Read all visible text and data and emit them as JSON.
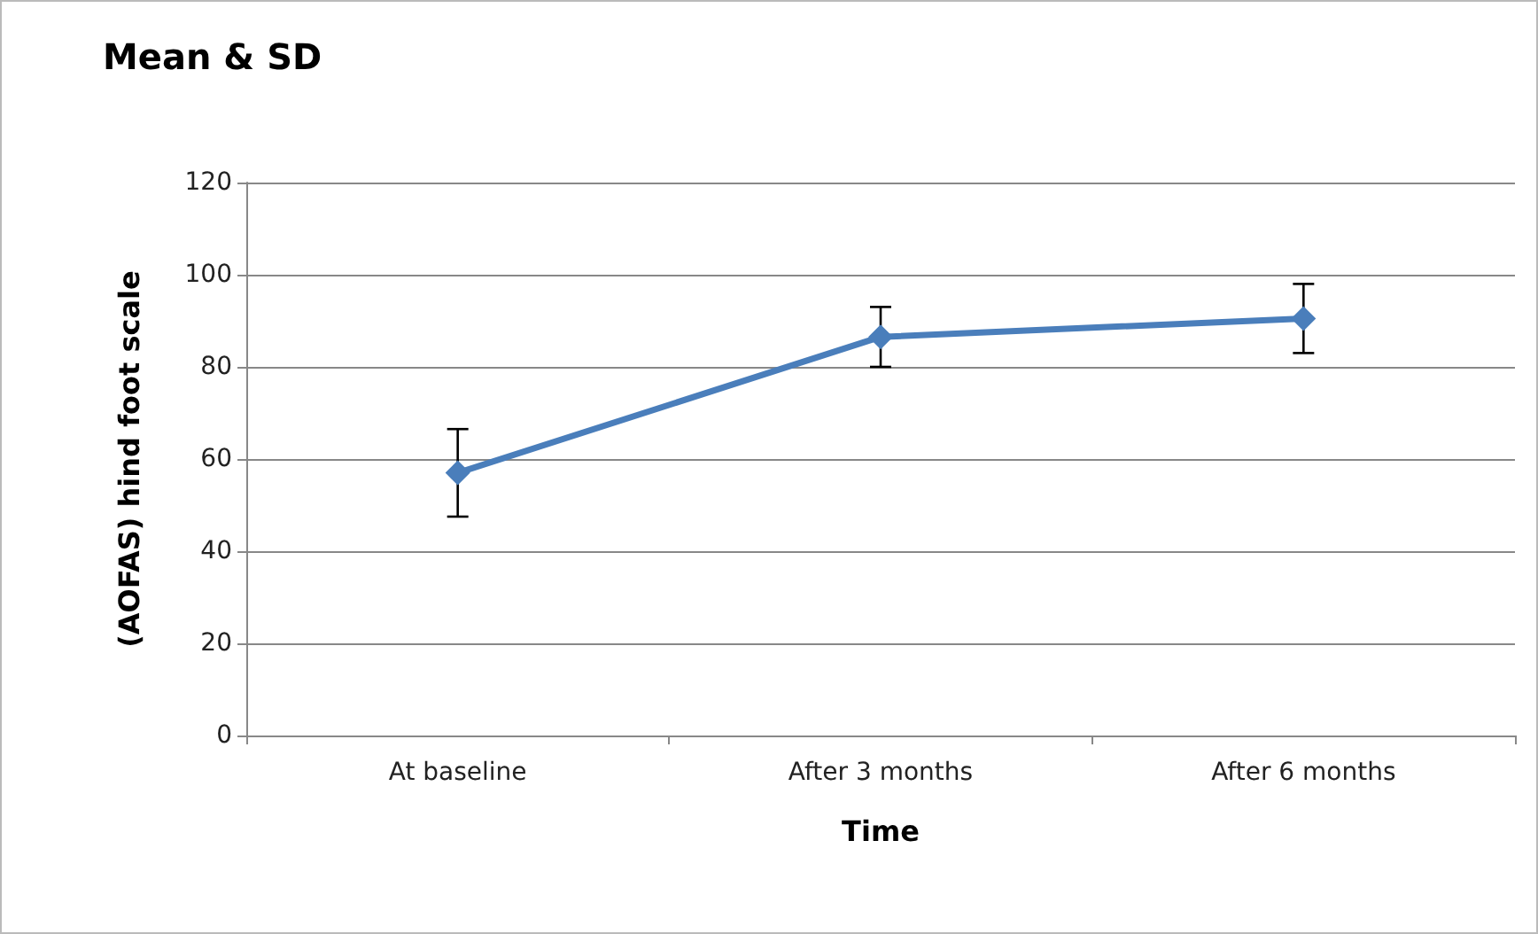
{
  "chart_data": {
    "type": "line",
    "title": "Mean & SD",
    "xlabel": "Time",
    "ylabel": "(AOFAS) hind foot scale",
    "categories": [
      "At baseline",
      "After 3 months",
      "After 6 months"
    ],
    "series": [
      {
        "color": "#4a7ebb",
        "values": [
          57,
          86.5,
          90.5
        ],
        "errors": [
          9.5,
          6.5,
          7.5
        ]
      }
    ],
    "ylim": [
      0,
      120
    ],
    "yticks": [
      0,
      20,
      40,
      60,
      80,
      100,
      120
    ],
    "grid": "y",
    "marker": "diamond",
    "line_style": "solid"
  }
}
